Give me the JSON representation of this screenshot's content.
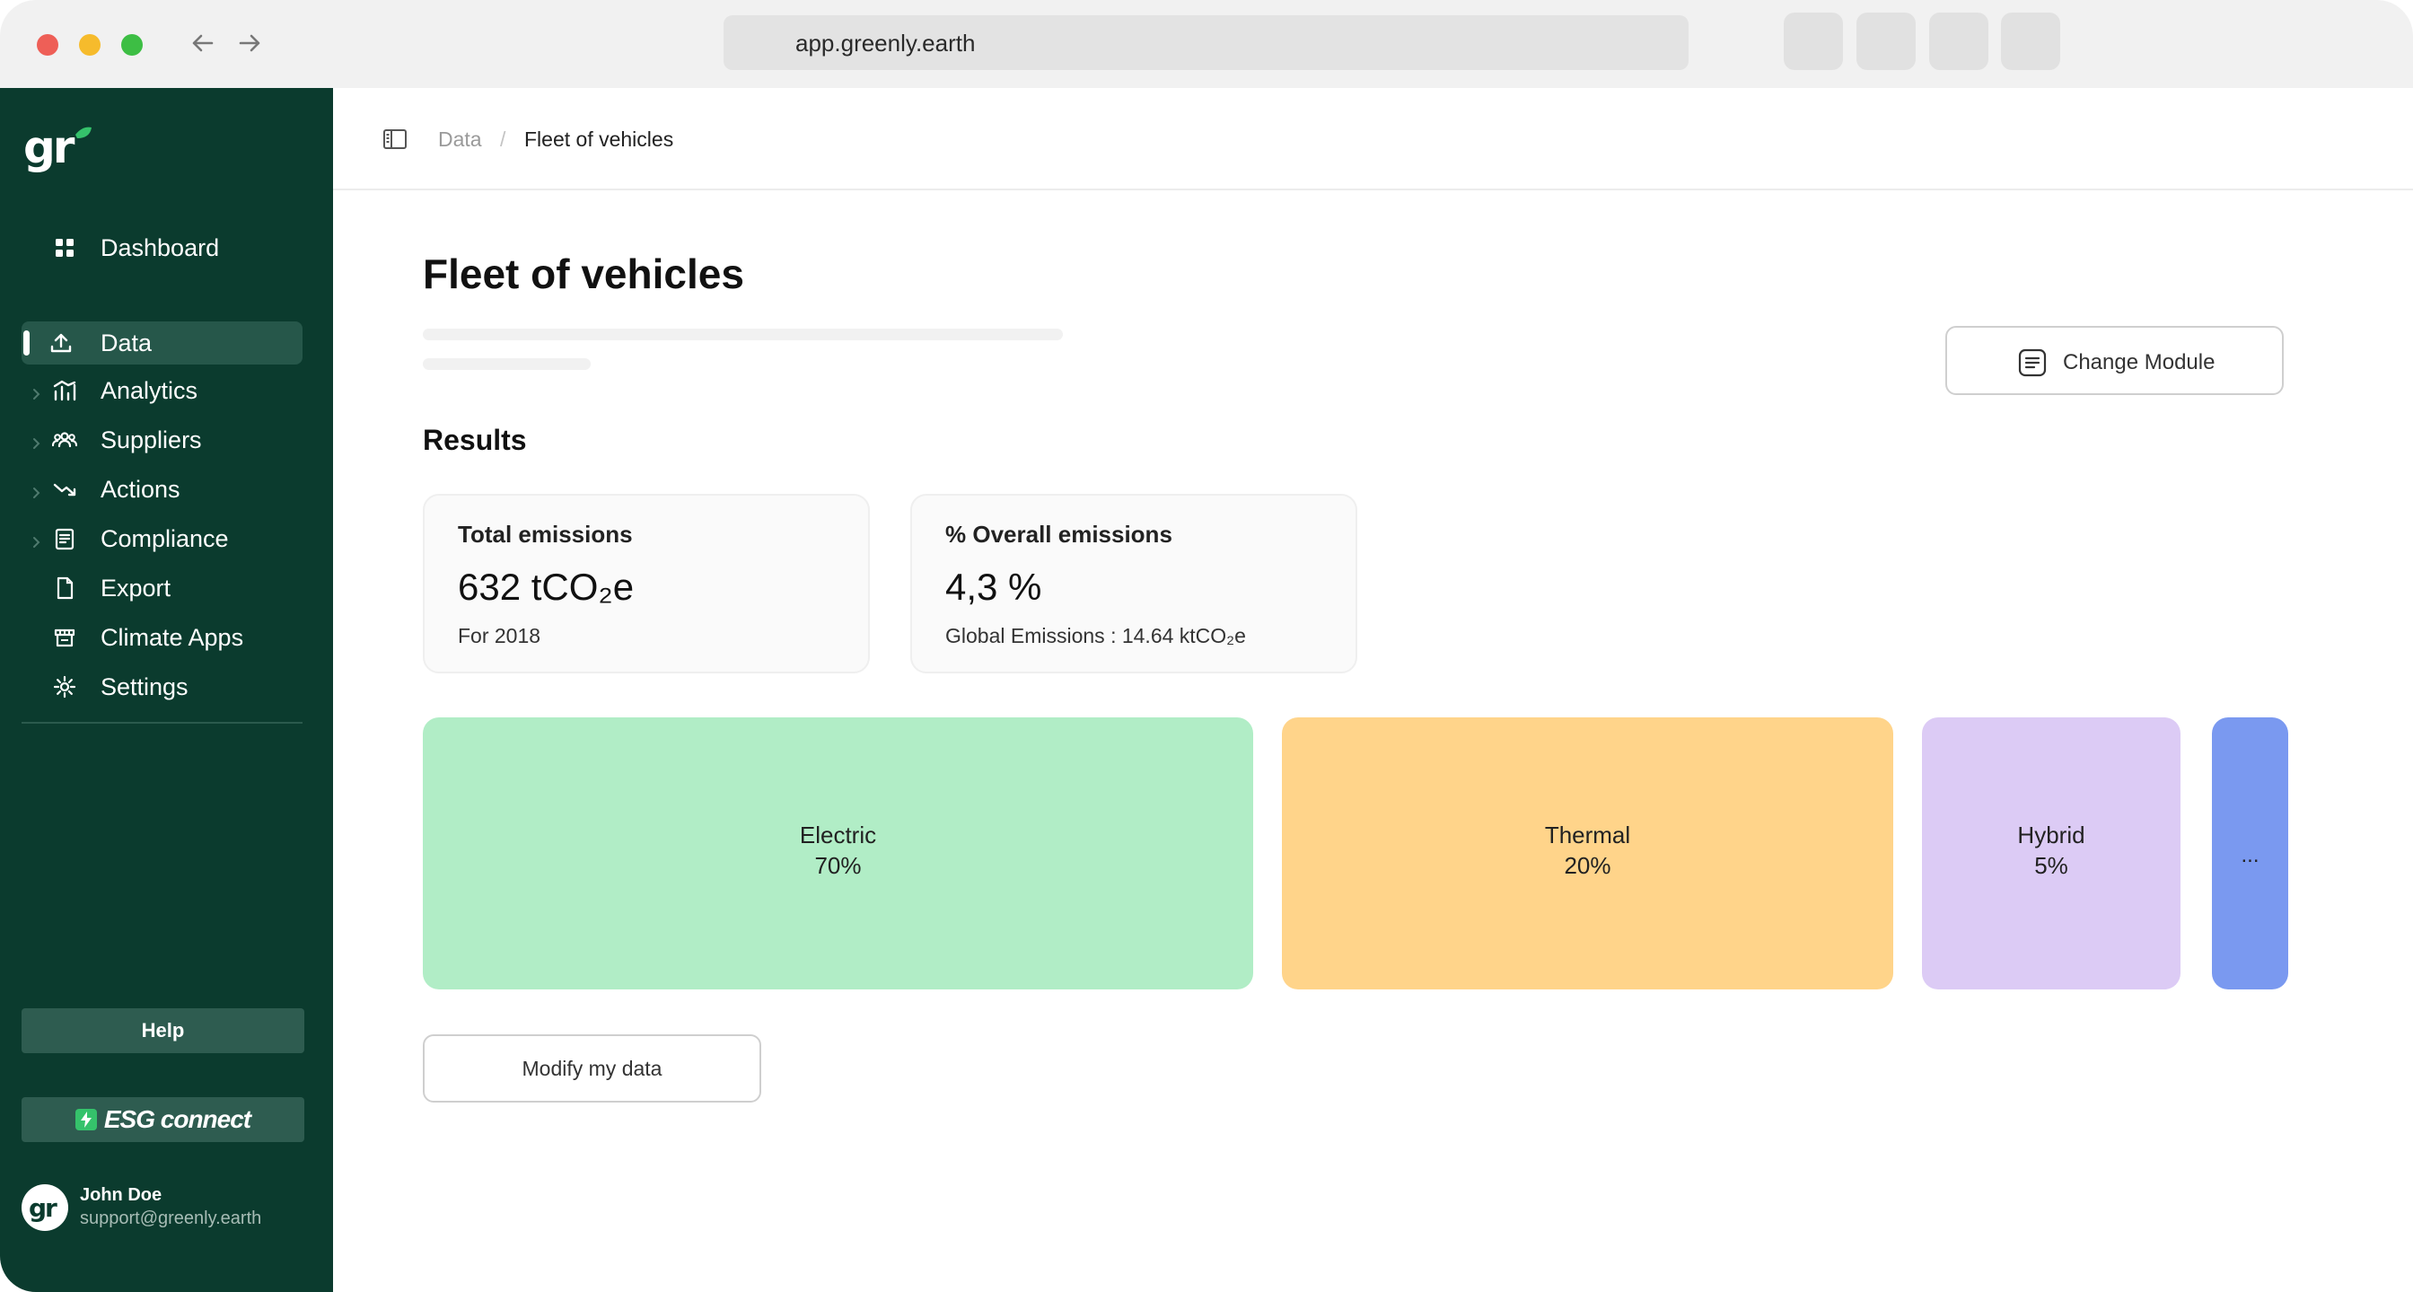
{
  "browser": {
    "url": "app.greenly.earth"
  },
  "sidebar": {
    "logo": "gr",
    "items": [
      {
        "label": "Dashboard",
        "icon": "grid-icon"
      },
      {
        "label": "Data",
        "icon": "upload-icon"
      },
      {
        "label": "Analytics",
        "icon": "analytics-icon"
      },
      {
        "label": "Suppliers",
        "icon": "users-icon"
      },
      {
        "label": "Actions",
        "icon": "trend-down-icon"
      },
      {
        "label": "Compliance",
        "icon": "clipboard-icon"
      },
      {
        "label": "Export",
        "icon": "file-icon"
      },
      {
        "label": "Climate Apps",
        "icon": "store-icon"
      },
      {
        "label": "Settings",
        "icon": "gear-icon"
      }
    ],
    "help_label": "Help",
    "esg_label": "ESG connect",
    "user": {
      "name": "John Doe",
      "email": "support@greenly.earth"
    }
  },
  "breadcrumb": {
    "parent": "Data",
    "separator": "/",
    "current": "Fleet of vehicles"
  },
  "page": {
    "title": "Fleet of vehicles",
    "change_module_label": "Change Module",
    "results_title": "Results",
    "modify_label": "Modify my data"
  },
  "cards": [
    {
      "title": "Total emissions",
      "value": "632 tCO₂e",
      "sub": "For 2018"
    },
    {
      "title": "% Overall emissions",
      "value": "4,3 %",
      "sub": "Global Emissions : 14.64 ktCO₂e"
    }
  ],
  "breakdown": [
    {
      "label": "Electric",
      "value": "70%",
      "color": "#b1edc6"
    },
    {
      "label": "Thermal",
      "value": "20%",
      "color": "#ffd48a"
    },
    {
      "label": "Hybrid",
      "value": "5%",
      "color": "#dccbf5"
    },
    {
      "label": "...",
      "color": "#7a99f0"
    }
  ],
  "colors": {
    "sidebar_bg": "#0b3b2e",
    "sidebar_active": "#26574a",
    "accent_green": "#35c26b"
  }
}
